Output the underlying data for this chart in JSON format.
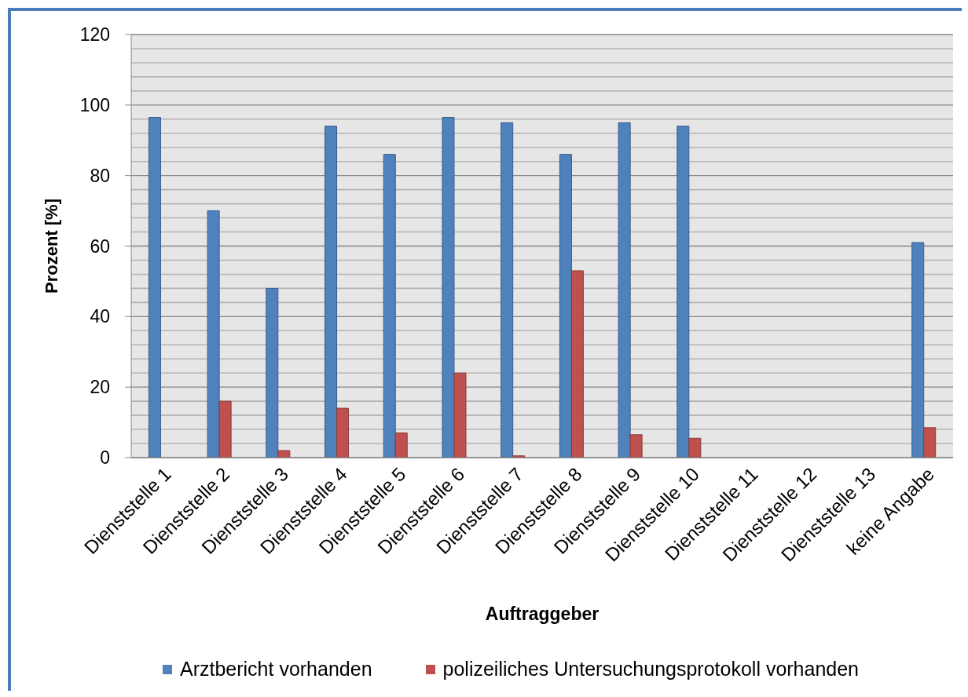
{
  "chart_data": {
    "type": "bar",
    "xlabel": "Auftraggeber",
    "ylabel": "Prozent [%]",
    "categories": [
      "Dienststelle 1",
      "Dienststelle 2",
      "Dienststelle 3",
      "Dienststelle 4",
      "Dienststelle 5",
      "Dienststelle 6",
      "Dienststelle 7",
      "Dienststelle 8",
      "Dienststelle 9",
      "Dienststelle 10",
      "Dienststelle 11",
      "Dienststelle 12",
      "Dienststelle 13",
      "keine Angabe"
    ],
    "series": [
      {
        "name": "Arztbericht vorhanden",
        "color": "#4f81bd",
        "values": [
          96.5,
          70,
          48,
          94,
          86,
          96.5,
          95,
          86,
          95,
          94,
          null,
          null,
          null,
          61
        ]
      },
      {
        "name": "polizeiliches Untersuchungsprotokoll vorhanden",
        "color": "#c0504d",
        "values": [
          0,
          16,
          2,
          14,
          7,
          24,
          0.5,
          53,
          6.5,
          5.5,
          null,
          null,
          null,
          8.5
        ]
      }
    ],
    "ylim": [
      0,
      120
    ],
    "yticks": [
      0,
      {
        "value": 4,
        "label": null
      },
      {
        "value": 8,
        "label": null
      },
      {
        "value": 12,
        "label": null
      },
      {
        "value": 16,
        "label": null
      },
      20,
      {
        "value": 24,
        "label": null
      },
      {
        "value": 28,
        "label": null
      },
      {
        "value": 32,
        "label": null
      },
      {
        "value": 36,
        "label": null
      },
      40,
      {
        "value": 44,
        "label": null
      },
      {
        "value": 48,
        "label": null
      },
      {
        "value": 52,
        "label": null
      },
      {
        "value": 56,
        "label": null
      },
      60,
      {
        "value": 64,
        "label": null
      },
      {
        "value": 68,
        "label": null
      },
      {
        "value": 72,
        "label": null
      },
      {
        "value": 76,
        "label": null
      },
      80,
      {
        "value": 84,
        "label": null
      },
      {
        "value": 88,
        "label": null
      },
      {
        "value": 92,
        "label": null
      },
      {
        "value": 96,
        "label": null
      },
      100,
      {
        "value": 104,
        "label": null
      },
      {
        "value": 108,
        "label": null
      },
      {
        "value": 112,
        "label": null
      },
      {
        "value": 116,
        "label": null
      },
      120
    ],
    "grid": "y",
    "legend": "bottom"
  }
}
